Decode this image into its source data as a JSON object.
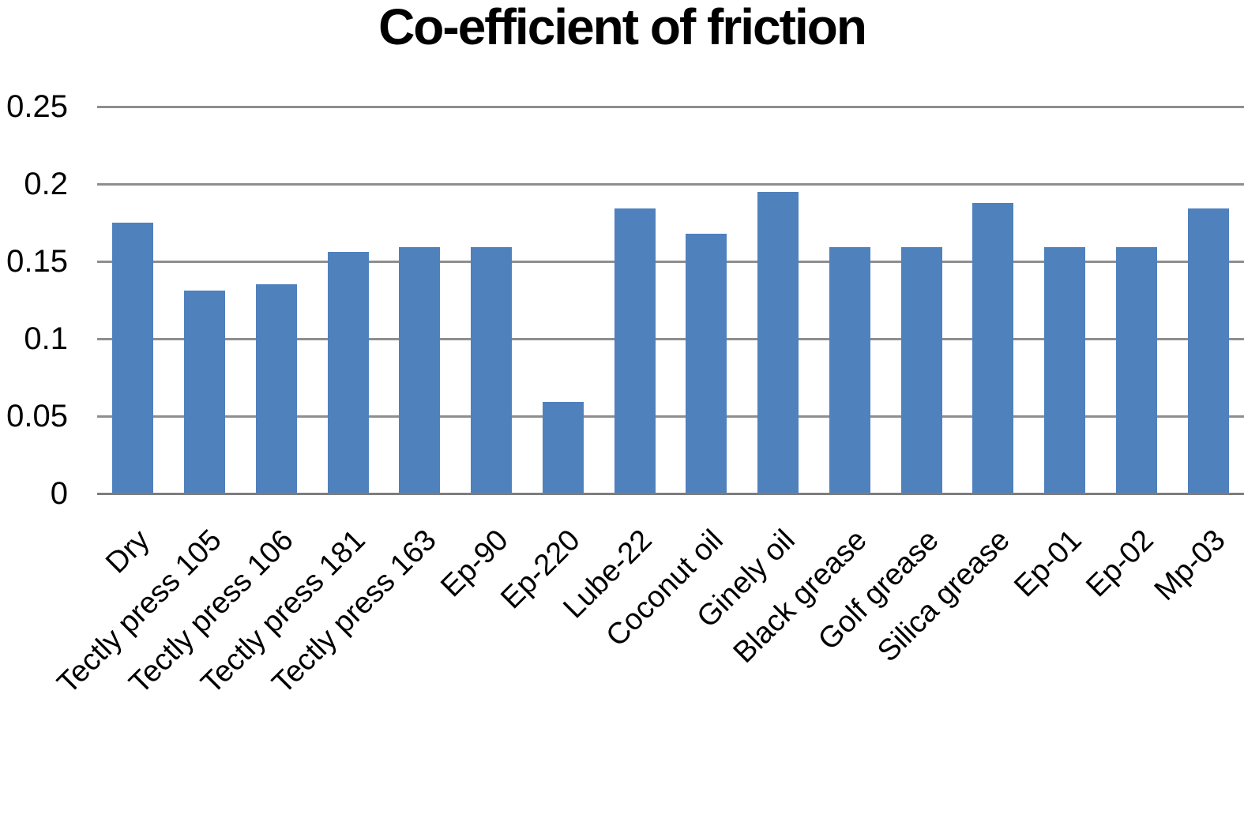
{
  "chart_data": {
    "type": "bar",
    "title": "Co-efficient of friction",
    "categories": [
      "Dry",
      "Tectly press 105",
      "Tectly press 106",
      "Tectly press 181",
      "Tectly press 163",
      "Ep-90",
      "Ep-220",
      "Lube-22",
      "Coconut oil",
      "Ginely oil",
      "Black grease",
      "Golf grease",
      "Silica grease",
      "Ep-01",
      "Ep-02",
      "Mp-03"
    ],
    "values": [
      0.175,
      0.131,
      0.135,
      0.156,
      0.159,
      0.159,
      0.059,
      0.184,
      0.168,
      0.195,
      0.159,
      0.159,
      0.188,
      0.159,
      0.159,
      0.184
    ],
    "xlabel": "",
    "ylabel": "",
    "ylim": [
      0,
      0.25
    ],
    "yticks": [
      0,
      0.05,
      0.1,
      0.15,
      0.2,
      0.25
    ],
    "ytick_labels": [
      "0",
      "0.05",
      "0.1",
      "0.15",
      "0.2",
      "0.25"
    ],
    "x_label_rotation_deg": 45,
    "grid": true,
    "legend_position": "none",
    "bar_color": "#4f81bd",
    "gridline_color": "#8e8e8e",
    "axis_line_color": "#7d7d7d",
    "text_color": "#000000",
    "background_color": "#ffffff"
  }
}
